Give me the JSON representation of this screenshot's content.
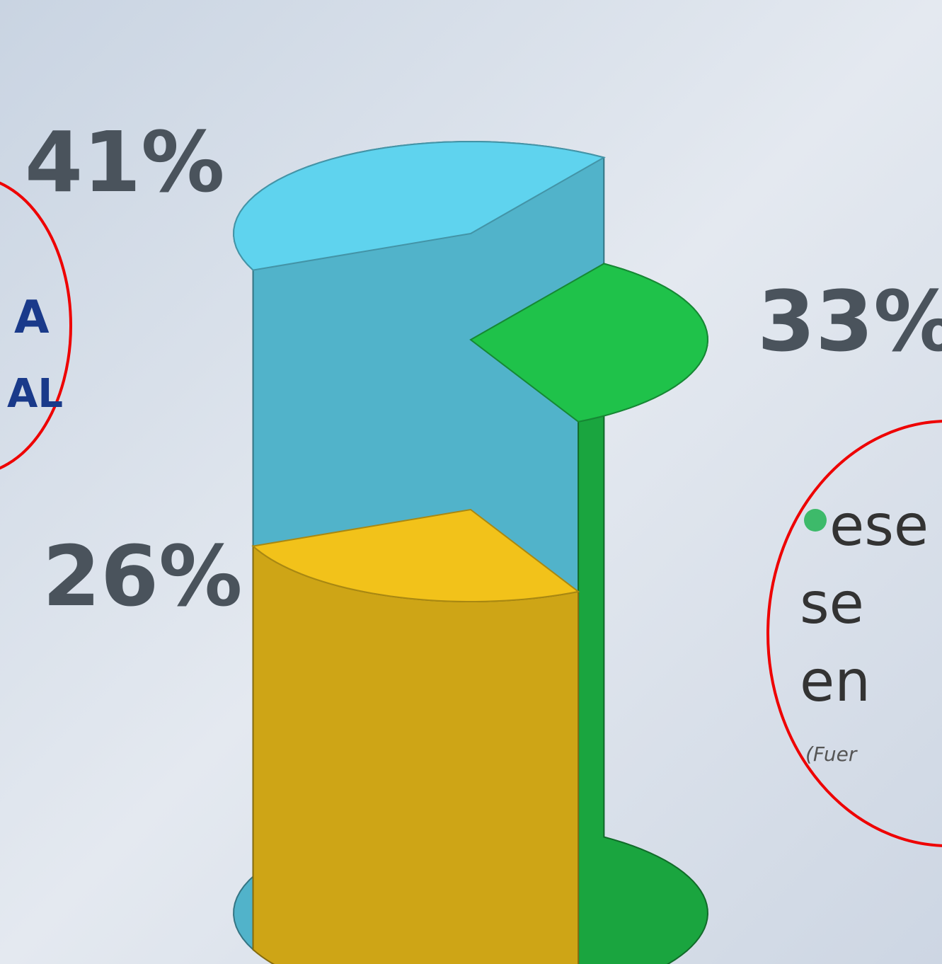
{
  "chart_data": {
    "type": "pie",
    "values": [
      33,
      26,
      41
    ],
    "value_labels": [
      "33%",
      "26%",
      "41%"
    ],
    "colors": [
      "#1fc24a",
      "#f2c21a",
      "#5fd3ee"
    ],
    "annotations": [
      "A",
      "AL",
      "ese",
      "se",
      "en",
      "(Fuer"
    ]
  }
}
